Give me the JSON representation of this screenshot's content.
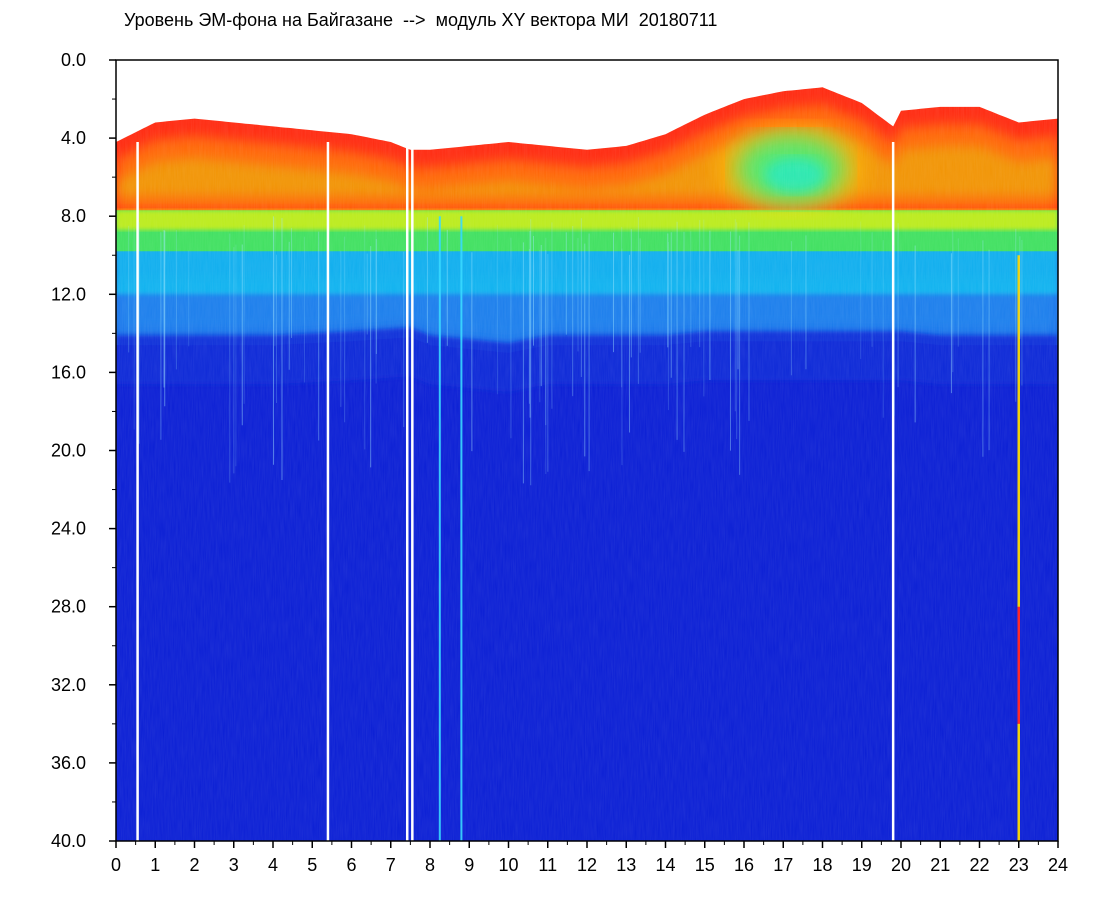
{
  "chart_data": {
    "type": "heatmap",
    "title": "Уровень ЭМ-фона на Байгазане  -->  модуль XY вектора МИ  20180711",
    "xlabel": "",
    "ylabel": "",
    "xlim": [
      0,
      24
    ],
    "ylim": [
      40,
      0
    ],
    "y_inverted": true,
    "x_ticks": [
      "0",
      "1",
      "2",
      "3",
      "4",
      "5",
      "6",
      "7",
      "8",
      "9",
      "10",
      "11",
      "12",
      "13",
      "14",
      "15",
      "16",
      "17",
      "18",
      "19",
      "20",
      "21",
      "22",
      "23",
      "24"
    ],
    "y_ticks": [
      "0.0",
      "4.0",
      "8.0",
      "12.0",
      "16.0",
      "20.0",
      "24.0",
      "28.0",
      "32.0",
      "36.0",
      "40.0"
    ],
    "grid": false,
    "legend": "none",
    "colorscale": [
      "#0000c8",
      "#0050ff",
      "#00c8ff",
      "#00ff64",
      "#ffff00",
      "#ff0000",
      "#ffffff"
    ],
    "upper_red_envelope": {
      "x": [
        0,
        1,
        2,
        3,
        4,
        5,
        6,
        7,
        7.5,
        8,
        9,
        10,
        11,
        12,
        13,
        14,
        15,
        16,
        17,
        18,
        19,
        19.8,
        20,
        21,
        22,
        23,
        24
      ],
      "y": [
        4.2,
        3.2,
        3.0,
        3.2,
        3.4,
        3.6,
        3.8,
        4.2,
        4.6,
        4.6,
        4.4,
        4.2,
        4.4,
        4.6,
        4.4,
        3.8,
        2.8,
        2.0,
        1.6,
        1.4,
        2.2,
        3.4,
        2.6,
        2.4,
        2.4,
        3.2,
        3.0
      ]
    },
    "green_yellow_band": {
      "y_top": 8.0,
      "y_bottom": 9.8
    },
    "cyan_band_lower_edge": {
      "x": [
        0,
        2,
        4,
        6,
        7.5,
        8,
        9,
        10,
        11,
        12,
        13,
        14,
        15,
        16,
        17,
        18,
        19,
        20,
        21,
        22,
        23,
        24
      ],
      "y": [
        14.6,
        14.6,
        14.6,
        14.4,
        14.2,
        14.6,
        14.8,
        15.0,
        14.6,
        14.6,
        14.6,
        14.6,
        14.4,
        14.4,
        14.4,
        14.4,
        14.4,
        14.4,
        14.6,
        14.6,
        14.6,
        14.6
      ]
    },
    "hot_region": {
      "x_center": 17.2,
      "y_center": 5.6,
      "x_radius": 1.4,
      "y_radius": 1.8
    },
    "vertical_streaks": [
      {
        "x": 0.55,
        "kind": "white"
      },
      {
        "x": 5.4,
        "kind": "white"
      },
      {
        "x": 7.42,
        "kind": "white"
      },
      {
        "x": 7.55,
        "kind": "white"
      },
      {
        "x": 8.25,
        "kind": "cyan"
      },
      {
        "x": 8.8,
        "kind": "cyan"
      },
      {
        "x": 19.8,
        "kind": "white"
      },
      {
        "x": 23.0,
        "kind": "yellow-red"
      }
    ]
  }
}
